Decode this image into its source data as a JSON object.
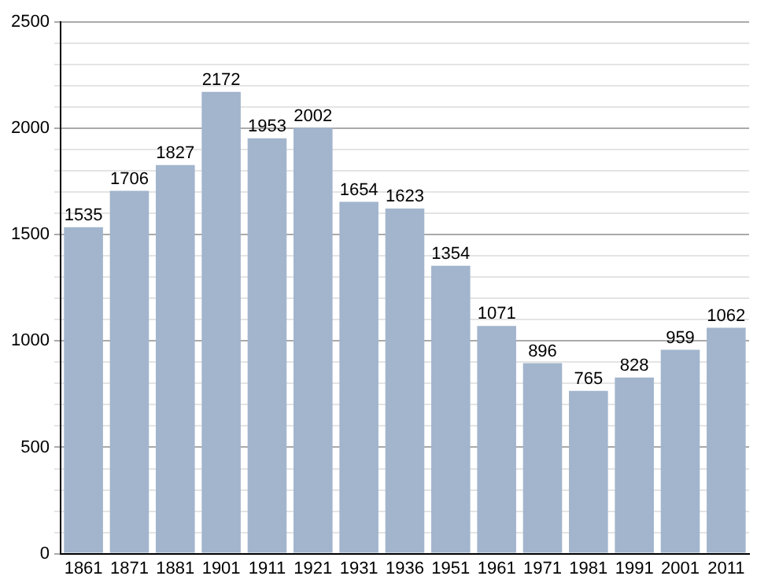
{
  "chart_data": {
    "type": "bar",
    "categories": [
      "1861",
      "1871",
      "1881",
      "1901",
      "1911",
      "1921",
      "1931",
      "1936",
      "1951",
      "1961",
      "1971",
      "1981",
      "1991",
      "2001",
      "2011"
    ],
    "values": [
      1535,
      1706,
      1827,
      2172,
      1953,
      2002,
      1654,
      1623,
      1354,
      1071,
      896,
      765,
      828,
      959,
      1062
    ],
    "color": "#a2b5cd",
    "ylim": [
      0,
      2500
    ],
    "yticks": [
      0,
      {
        "value": 100,
        "label": null
      },
      {
        "value": 200,
        "label": null
      },
      {
        "value": 300,
        "label": null
      },
      {
        "value": 400,
        "label": null
      },
      500,
      {
        "value": 600,
        "label": null
      },
      {
        "value": 700,
        "label": null
      },
      {
        "value": 800,
        "label": null
      },
      {
        "value": 900,
        "label": null
      },
      1000,
      {
        "value": 1100,
        "label": null
      },
      {
        "value": 1200,
        "label": null
      },
      {
        "value": 1300,
        "label": null
      },
      {
        "value": 1400,
        "label": null
      },
      1500,
      {
        "value": 1600,
        "label": null
      },
      {
        "value": 1700,
        "label": null
      },
      {
        "value": 1800,
        "label": null
      },
      {
        "value": 1900,
        "label": null
      },
      2000,
      {
        "value": 2100,
        "label": null
      },
      {
        "value": 2200,
        "label": null
      },
      {
        "value": 2300,
        "label": null
      },
      {
        "value": 2400,
        "label": null
      },
      2500
    ],
    "grid": "y",
    "data_labels": true
  }
}
